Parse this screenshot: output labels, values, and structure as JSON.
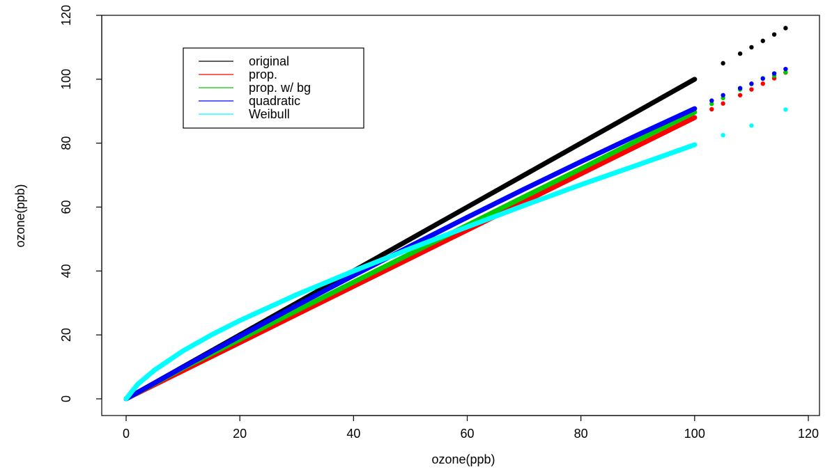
{
  "chart_data": {
    "type": "scatter",
    "title": "",
    "xlabel": "ozone(ppb)",
    "ylabel": "ozone(ppb)",
    "xlim": [
      0,
      120
    ],
    "ylim": [
      0,
      120
    ],
    "xticks": [
      0,
      20,
      40,
      60,
      80,
      100,
      120
    ],
    "yticks": [
      0,
      20,
      40,
      60,
      80,
      100,
      120
    ],
    "x_tick_labels": [
      "0",
      "20",
      "40",
      "60",
      "80",
      "100",
      "120"
    ],
    "y_tick_labels": [
      "0",
      "20",
      "40",
      "60",
      "80",
      "100",
      "120"
    ],
    "grid": false,
    "legend_position": "top-left",
    "series": [
      {
        "name": "original",
        "color": "#000000",
        "x": [
          0,
          10,
          20,
          30,
          40,
          50,
          60,
          70,
          80,
          90,
          100,
          105,
          108,
          110,
          112,
          114,
          116
        ],
        "y": [
          0,
          10,
          20,
          30,
          40,
          50,
          60,
          70,
          80,
          90,
          100,
          105,
          108,
          110,
          112,
          114,
          116
        ]
      },
      {
        "name": "prop.",
        "color": "#ff0000",
        "x": [
          0,
          10,
          20,
          30,
          40,
          50,
          60,
          70,
          80,
          90,
          100,
          103,
          105,
          108,
          110,
          112,
          114,
          116
        ],
        "y": [
          0,
          8.8,
          17.6,
          26.4,
          35.2,
          44.0,
          52.8,
          61.6,
          70.4,
          79.2,
          88.0,
          90.6,
          92.4,
          95.0,
          96.8,
          98.6,
          100.3,
          102.1
        ]
      },
      {
        "name": "prop. w/ bg",
        "color": "#00cc00",
        "x": [
          0,
          10,
          20,
          30,
          40,
          50,
          60,
          70,
          80,
          90,
          100,
          103,
          105,
          108,
          110,
          112,
          114,
          116
        ],
        "y": [
          0,
          9.6,
          18.6,
          27.6,
          36.5,
          45.4,
          54.3,
          63.2,
          72.0,
          80.9,
          89.7,
          92.3,
          94.1,
          96.8,
          98.5,
          100.3,
          101.1,
          102.2
        ]
      },
      {
        "name": "quadratic",
        "color": "#0000ff",
        "x": [
          0,
          10,
          20,
          30,
          40,
          50,
          60,
          70,
          80,
          90,
          100,
          103,
          105,
          108,
          110,
          112,
          114,
          116
        ],
        "y": [
          0,
          9.9,
          19.6,
          29.2,
          38.6,
          47.8,
          56.8,
          65.6,
          74.2,
          82.6,
          90.8,
          93.3,
          95.0,
          97.2,
          98.6,
          100.2,
          101.8,
          103.2
        ]
      },
      {
        "name": "Weibull",
        "color": "#00ffff",
        "x": [
          0,
          2,
          5,
          10,
          15,
          20,
          30,
          40,
          50,
          60,
          70,
          80,
          90,
          100,
          105,
          110,
          116
        ],
        "y": [
          0,
          4.5,
          9.0,
          15.0,
          20.0,
          24.5,
          32.6,
          40.0,
          47.0,
          53.8,
          60.5,
          67.0,
          73.2,
          79.5,
          82.5,
          85.5,
          90.5
        ]
      }
    ]
  }
}
